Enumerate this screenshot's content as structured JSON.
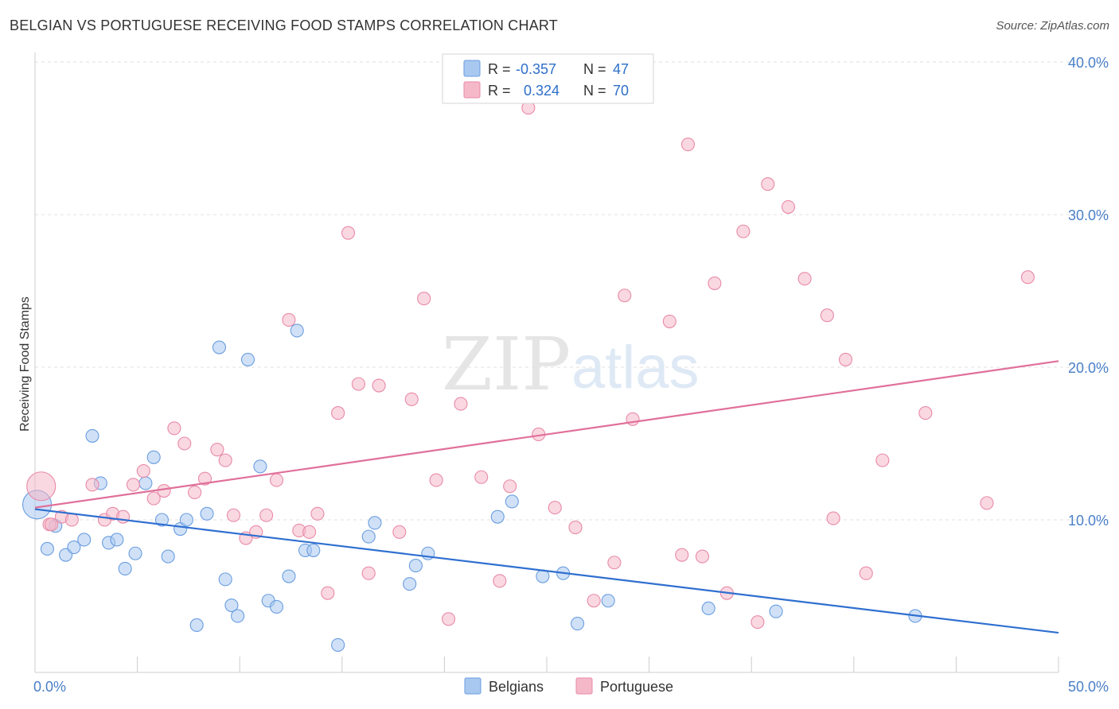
{
  "header": {
    "title": "BELGIAN VS PORTUGUESE RECEIVING FOOD STAMPS CORRELATION CHART",
    "source": "Source: ZipAtlas.com"
  },
  "watermark": {
    "zip": "ZIP",
    "atlas": "atlas"
  },
  "legend_top": {
    "rows": [
      {
        "r_label": "R =",
        "r_value": "-0.357",
        "n_label": "N =",
        "n_value": "47",
        "color": "#a9c8f0"
      },
      {
        "r_label": "R =",
        "r_value": "0.324",
        "n_label": "N =",
        "n_value": "70",
        "color": "#f5b8c9"
      }
    ]
  },
  "legend_bottom": {
    "items": [
      {
        "label": "Belgians",
        "color": "#a9c8f0"
      },
      {
        "label": "Portuguese",
        "color": "#f5b8c9"
      }
    ]
  },
  "chart_data": {
    "type": "scatter",
    "title": "BELGIAN VS PORTUGUESE RECEIVING FOOD STAMPS CORRELATION CHART",
    "xlabel": "",
    "ylabel": "Receiving Food Stamps",
    "xlim": [
      0,
      50
    ],
    "ylim": [
      0,
      40
    ],
    "x_ticks": [
      "0.0%",
      "50.0%"
    ],
    "y_ticks": [
      "10.0%",
      "20.0%",
      "30.0%",
      "40.0%"
    ],
    "y_tick_values": [
      10,
      20,
      30,
      40
    ],
    "grid": true,
    "legend_position": "bottom",
    "series": [
      {
        "name": "Belgians",
        "color": "#a9c8f0",
        "stroke": "#6a9de0",
        "trend_color": "#2f6fd0",
        "trend": [
          [
            0,
            10.7
          ],
          [
            50,
            2.6
          ]
        ],
        "points": [
          [
            0.1,
            11.0
          ],
          [
            0.6,
            8.1
          ],
          [
            1.0,
            9.6
          ],
          [
            1.5,
            7.7
          ],
          [
            1.9,
            8.2
          ],
          [
            2.4,
            8.7
          ],
          [
            2.8,
            15.5
          ],
          [
            3.2,
            12.4
          ],
          [
            3.6,
            8.5
          ],
          [
            4.0,
            8.7
          ],
          [
            4.4,
            6.8
          ],
          [
            4.9,
            7.8
          ],
          [
            5.4,
            12.4
          ],
          [
            5.8,
            14.1
          ],
          [
            6.2,
            10.0
          ],
          [
            6.5,
            7.6
          ],
          [
            7.1,
            9.4
          ],
          [
            7.4,
            10.0
          ],
          [
            7.9,
            3.1
          ],
          [
            8.4,
            10.4
          ],
          [
            9.0,
            21.3
          ],
          [
            9.3,
            6.1
          ],
          [
            9.6,
            4.4
          ],
          [
            9.9,
            3.7
          ],
          [
            10.4,
            20.5
          ],
          [
            11.0,
            13.5
          ],
          [
            11.4,
            4.7
          ],
          [
            11.8,
            4.3
          ],
          [
            12.4,
            6.3
          ],
          [
            12.8,
            22.4
          ],
          [
            13.2,
            8.0
          ],
          [
            13.6,
            8.0
          ],
          [
            14.8,
            1.8
          ],
          [
            16.3,
            8.9
          ],
          [
            16.6,
            9.8
          ],
          [
            18.3,
            5.8
          ],
          [
            18.6,
            7.0
          ],
          [
            19.2,
            7.8
          ],
          [
            22.6,
            10.2
          ],
          [
            23.3,
            11.2
          ],
          [
            24.8,
            6.3
          ],
          [
            25.8,
            6.5
          ],
          [
            26.5,
            3.2
          ],
          [
            28.0,
            4.7
          ],
          [
            32.9,
            4.2
          ],
          [
            36.2,
            4.0
          ],
          [
            43.0,
            3.7
          ]
        ]
      },
      {
        "name": "Portuguese",
        "color": "#f5b8c9",
        "stroke": "#e88aa8",
        "trend_color": "#e0709a",
        "trend": [
          [
            0,
            10.8
          ],
          [
            50,
            20.4
          ]
        ],
        "points": [
          [
            0.3,
            12.2
          ],
          [
            0.7,
            9.7
          ],
          [
            1.3,
            10.2
          ],
          [
            1.8,
            10.0
          ],
          [
            2.8,
            12.3
          ],
          [
            3.4,
            10.0
          ],
          [
            3.8,
            10.4
          ],
          [
            4.3,
            10.2
          ],
          [
            4.8,
            12.3
          ],
          [
            5.3,
            13.2
          ],
          [
            5.8,
            11.4
          ],
          [
            6.3,
            11.9
          ],
          [
            6.8,
            16.0
          ],
          [
            7.3,
            15.0
          ],
          [
            7.8,
            11.8
          ],
          [
            8.3,
            12.7
          ],
          [
            8.9,
            14.6
          ],
          [
            9.3,
            13.9
          ],
          [
            9.7,
            10.3
          ],
          [
            10.3,
            8.8
          ],
          [
            10.8,
            9.2
          ],
          [
            11.3,
            10.3
          ],
          [
            11.8,
            12.6
          ],
          [
            12.4,
            23.1
          ],
          [
            12.9,
            9.3
          ],
          [
            13.4,
            9.2
          ],
          [
            13.8,
            10.4
          ],
          [
            14.3,
            5.2
          ],
          [
            14.8,
            17.0
          ],
          [
            15.3,
            28.8
          ],
          [
            15.8,
            18.9
          ],
          [
            16.3,
            6.5
          ],
          [
            16.8,
            18.8
          ],
          [
            17.8,
            9.2
          ],
          [
            18.4,
            17.9
          ],
          [
            19.0,
            24.5
          ],
          [
            19.6,
            12.6
          ],
          [
            20.2,
            3.5
          ],
          [
            20.8,
            17.6
          ],
          [
            21.8,
            12.8
          ],
          [
            22.7,
            6.0
          ],
          [
            23.2,
            12.2
          ],
          [
            24.1,
            37.0
          ],
          [
            24.6,
            15.6
          ],
          [
            25.4,
            10.8
          ],
          [
            26.4,
            9.5
          ],
          [
            27.3,
            4.7
          ],
          [
            28.3,
            7.2
          ],
          [
            28.8,
            24.7
          ],
          [
            29.2,
            16.6
          ],
          [
            31.0,
            23.0
          ],
          [
            31.6,
            7.7
          ],
          [
            31.9,
            34.6
          ],
          [
            32.6,
            7.6
          ],
          [
            33.2,
            25.5
          ],
          [
            33.8,
            5.2
          ],
          [
            34.6,
            28.9
          ],
          [
            35.3,
            3.3
          ],
          [
            35.8,
            32.0
          ],
          [
            36.8,
            30.5
          ],
          [
            37.6,
            25.8
          ],
          [
            38.7,
            23.4
          ],
          [
            39.0,
            10.1
          ],
          [
            39.6,
            20.5
          ],
          [
            40.6,
            6.5
          ],
          [
            41.4,
            13.9
          ],
          [
            43.5,
            17.0
          ],
          [
            46.5,
            11.1
          ],
          [
            48.5,
            25.9
          ],
          [
            0.8,
            9.7
          ]
        ]
      }
    ]
  }
}
